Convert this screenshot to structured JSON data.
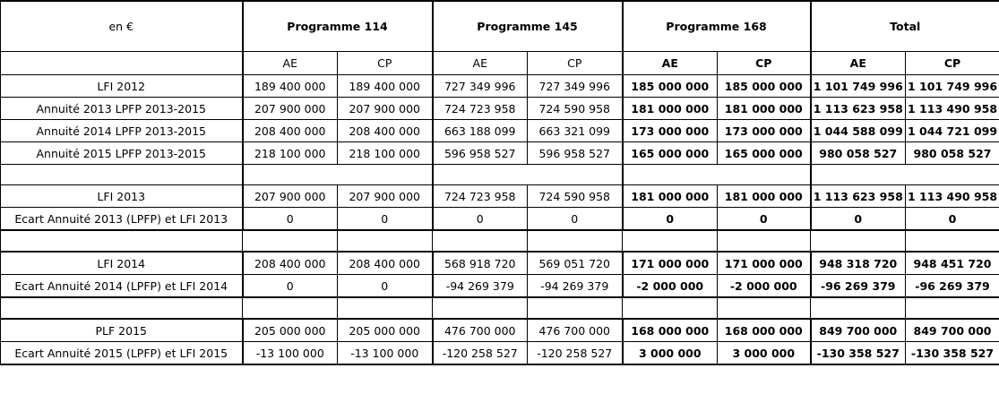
{
  "header": {
    "corner": "en €",
    "programmes": [
      "Programme 114",
      "Programme 145",
      "Programme 168",
      "Total"
    ],
    "sub": [
      "AE",
      "CP",
      "AE",
      "CP",
      "AE",
      "CP",
      "AE",
      "CP"
    ]
  },
  "rows": [
    {
      "label": "LFI 2012",
      "v": [
        "189 400 000",
        "189 400 000",
        "727 349 996",
        "727 349 996",
        "185 000 000",
        "185 000 000",
        "1 101 749 996",
        "1 101 749 996"
      ]
    },
    {
      "label": "Annuité 2013 LPFP 2013-2015",
      "v": [
        "207 900 000",
        "207 900 000",
        "724 723 958",
        "724 590 958",
        "181 000 000",
        "181 000 000",
        "1 113 623 958",
        "1 113 490 958"
      ]
    },
    {
      "label": "Annuité 2014 LPFP 2013-2015",
      "v": [
        "208 400 000",
        "208 400 000",
        "663 188 099",
        "663 321 099",
        "173 000 000",
        "173 000 000",
        "1 044 588 099",
        "1 044 721 099"
      ]
    },
    {
      "label": "Annuité 2015 LPFP 2013-2015",
      "v": [
        "218 100 000",
        "218 100 000",
        "596 958 527",
        "596 958 527",
        "165 000 000",
        "165 000 000",
        "980 058 527",
        "980 058 527"
      ]
    },
    {
      "label": "LFI 2013",
      "v": [
        "207 900 000",
        "207 900 000",
        "724 723 958",
        "724 590 958",
        "181 000 000",
        "181 000 000",
        "1 113 623 958",
        "1 113 490 958"
      ]
    },
    {
      "label": "Ecart Annuité 2013 (LPFP) et LFI 2013",
      "v": [
        "0",
        "0",
        "0",
        "0",
        "0",
        "0",
        "0",
        "0"
      ]
    },
    {
      "label": "LFI 2014",
      "v": [
        "208 400 000",
        "208 400 000",
        "568 918 720",
        "569 051 720",
        "171 000 000",
        "171 000 000",
        "948 318 720",
        "948 451 720"
      ]
    },
    {
      "label": "Ecart Annuité 2014 (LPFP) et LFI 2014",
      "v": [
        "0",
        "0",
        "-94 269 379",
        "-94 269 379",
        "-2 000 000",
        "-2 000 000",
        "-96 269 379",
        "-96 269 379"
      ]
    },
    {
      "label": "PLF 2015",
      "v": [
        "205 000 000",
        "205 000 000",
        "476 700 000",
        "476 700 000",
        "168 000 000",
        "168 000 000",
        "849 700 000",
        "849 700 000"
      ]
    },
    {
      "label": "Ecart Annuité 2015 (LPFP) et LFI 2015",
      "v": [
        "-13 100 000",
        "-13 100 000",
        "-120 258 527",
        "-120 258 527",
        "3 000 000",
        "3 000 000",
        "-130 358 527",
        "-130 358 527"
      ]
    }
  ]
}
